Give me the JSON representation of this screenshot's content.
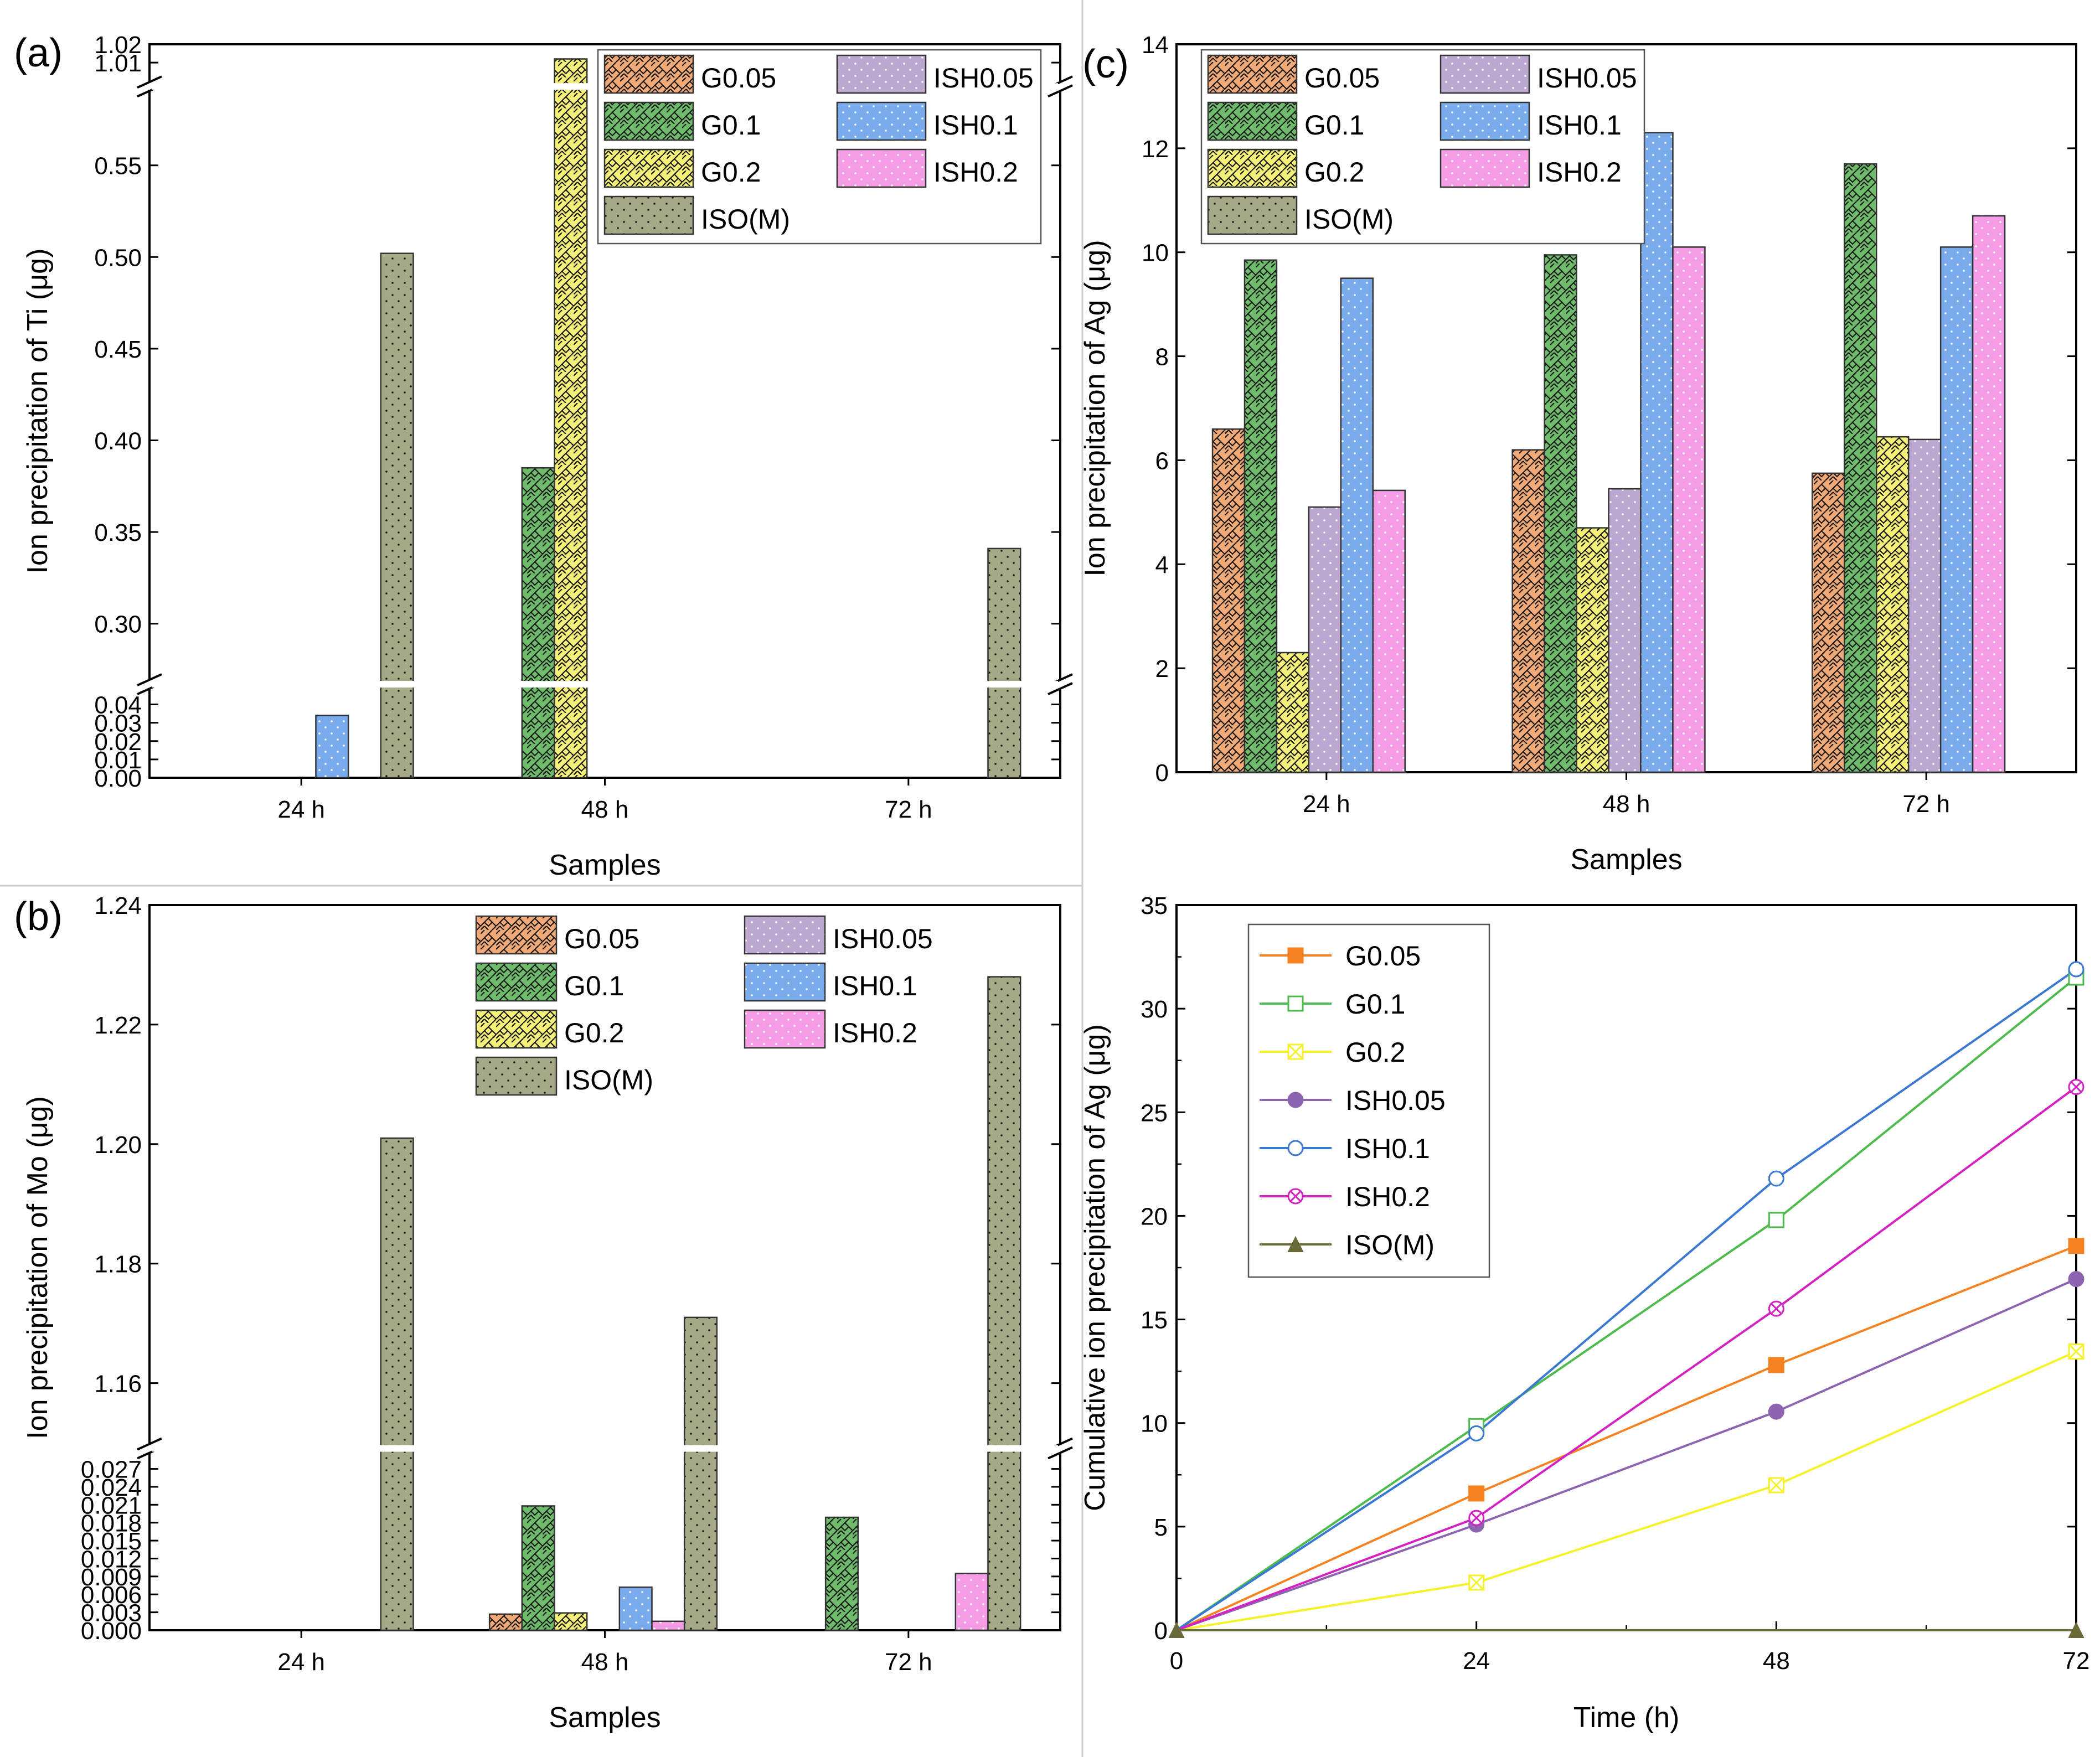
{
  "colors": {
    "G0.05": "#f2a978",
    "G0.1": "#6fbb6c",
    "G0.2": "#f4f07a",
    "ISH0.05": "#bba7cf",
    "ISH0.1": "#79aaeb",
    "ISH0.2": "#f59ce6",
    "ISO(M)": "#a7a986",
    "line_G0.05": "#f58220",
    "line_G0.1": "#4cbb4c",
    "line_G0.2": "#f5f22a",
    "line_ISH0.05": "#8c64b0",
    "line_ISH0.1": "#3a78d4",
    "line_ISH0.2": "#d421c2",
    "line_ISO(M)": "#6b6b3a"
  },
  "chart_data": [
    {
      "id": "a",
      "panel_label": "(a)",
      "type": "bar",
      "xlabel": "Samples",
      "ylabel": "Ion precipitation of Ti (μg)",
      "categories": [
        "24 h",
        "48 h",
        "72 h"
      ],
      "broken_axis": true,
      "segments": [
        [
          0,
          0.048
        ],
        [
          0.27,
          0.59
        ],
        [
          1.0,
          1.02
        ]
      ],
      "ticks": [
        [
          0.0,
          0.01,
          0.02,
          0.03,
          0.04
        ],
        [
          0.3,
          0.35,
          0.4,
          0.45,
          0.5,
          0.55
        ],
        [
          1.01,
          1.02
        ]
      ],
      "tick_labels": [
        [
          "0.00",
          "0.01",
          "0.02",
          "0.03",
          "0.04"
        ],
        [
          "0.30",
          "0.35",
          "0.40",
          "0.45",
          "0.50",
          "0.55"
        ],
        [
          "1.01",
          "1.02"
        ]
      ],
      "series": [
        {
          "name": "G0.05",
          "values": [
            0,
            0,
            0
          ]
        },
        {
          "name": "G0.1",
          "values": [
            0,
            0.385,
            0
          ]
        },
        {
          "name": "G0.2",
          "values": [
            0,
            1.012,
            0
          ]
        },
        {
          "name": "ISH0.05",
          "values": [
            0,
            0,
            0
          ]
        },
        {
          "name": "ISH0.1",
          "values": [
            0.034,
            0,
            0
          ]
        },
        {
          "name": "ISH0.2",
          "values": [
            0,
            0,
            0
          ]
        },
        {
          "name": "ISO(M)",
          "values": [
            0.502,
            0,
            0.341
          ]
        }
      ],
      "legend": [
        "G0.05",
        "ISH0.05",
        "G0.1",
        "ISH0.1",
        "G0.2",
        "ISH0.2",
        "ISO(M)"
      ]
    },
    {
      "id": "b",
      "panel_label": "(b)",
      "type": "bar",
      "xlabel": "Samples",
      "ylabel": "Ion precipitation of Mo (μg)",
      "categories": [
        "24 h",
        "48 h",
        "72 h"
      ],
      "broken_axis": true,
      "segments": [
        [
          0,
          0.0295
        ],
        [
          1.15,
          1.24
        ]
      ],
      "ticks": [
        [
          0.0,
          0.003,
          0.006,
          0.009,
          0.012,
          0.015,
          0.018,
          0.021,
          0.024,
          0.027
        ],
        [
          1.16,
          1.18,
          1.2,
          1.22,
          1.24
        ]
      ],
      "tick_labels": [
        [
          "0.000",
          "0.003",
          "0.006",
          "0.009",
          "0.012",
          "0.015",
          "0.018",
          "0.021",
          "0.024",
          "0.027"
        ],
        [
          "1.16",
          "1.18",
          "1.20",
          "1.22",
          "1.24"
        ]
      ],
      "series": [
        {
          "name": "G0.05",
          "values": [
            0,
            0.0027,
            0
          ]
        },
        {
          "name": "G0.1",
          "values": [
            0,
            0.0208,
            0.0189
          ]
        },
        {
          "name": "G0.2",
          "values": [
            0,
            0.0029,
            0
          ]
        },
        {
          "name": "ISH0.05",
          "values": [
            0,
            0,
            0
          ]
        },
        {
          "name": "ISH0.1",
          "values": [
            0,
            0.0072,
            0
          ]
        },
        {
          "name": "ISH0.2",
          "values": [
            0,
            0.0015,
            0.0095
          ]
        },
        {
          "name": "ISO(M)",
          "values": [
            1.201,
            1.171,
            1.228
          ]
        }
      ],
      "legend": [
        "G0.05",
        "ISH0.05",
        "G0.1",
        "ISH0.1",
        "G0.2",
        "ISH0.2",
        "ISO(M)"
      ]
    },
    {
      "id": "c",
      "panel_label": "(c)",
      "type": "bar",
      "xlabel": "Samples",
      "ylabel": "Ion precipitation of Ag (μg)",
      "categories": [
        "24 h",
        "48 h",
        "72 h"
      ],
      "ylim": [
        0,
        14
      ],
      "ticks": [
        0,
        2,
        4,
        6,
        8,
        10,
        12,
        14
      ],
      "series": [
        {
          "name": "G0.05",
          "values": [
            6.6,
            6.2,
            5.75
          ]
        },
        {
          "name": "G0.1",
          "values": [
            9.85,
            9.95,
            11.7
          ]
        },
        {
          "name": "G0.2",
          "values": [
            2.3,
            4.7,
            6.45
          ]
        },
        {
          "name": "ISH0.05",
          "values": [
            5.1,
            5.45,
            6.4
          ]
        },
        {
          "name": "ISH0.1",
          "values": [
            9.5,
            12.3,
            10.1
          ]
        },
        {
          "name": "ISH0.2",
          "values": [
            5.42,
            10.1,
            10.7
          ]
        },
        {
          "name": "ISO(M)",
          "values": [
            0,
            0,
            0
          ]
        }
      ],
      "legend": [
        "G0.05",
        "ISH0.05",
        "G0.1",
        "ISH0.1",
        "G0.2",
        "ISH0.2",
        "ISO(M)"
      ]
    },
    {
      "id": "d",
      "panel_label": "",
      "type": "line",
      "xlabel": "Time (h)",
      "ylabel": "Cumulative ion precipitation of Ag (μg)",
      "x": [
        0,
        24,
        48,
        72
      ],
      "xlim": [
        0,
        72
      ],
      "ylim": [
        0,
        35
      ],
      "xticks": [
        0,
        24,
        48,
        72
      ],
      "yticks": [
        0,
        5,
        10,
        15,
        20,
        25,
        30,
        35
      ],
      "series": [
        {
          "name": "G0.05",
          "marker": "square-filled",
          "values": [
            0,
            6.6,
            12.8,
            18.55
          ]
        },
        {
          "name": "G0.1",
          "marker": "square-open",
          "values": [
            0,
            9.85,
            19.8,
            31.5
          ]
        },
        {
          "name": "G0.2",
          "marker": "square-x",
          "values": [
            0,
            2.3,
            7.0,
            13.45
          ]
        },
        {
          "name": "ISH0.05",
          "marker": "circle-filled",
          "values": [
            0,
            5.1,
            10.55,
            16.95
          ]
        },
        {
          "name": "ISH0.1",
          "marker": "circle-open",
          "values": [
            0,
            9.5,
            21.8,
            31.9
          ]
        },
        {
          "name": "ISH0.2",
          "marker": "circle-x",
          "values": [
            0,
            5.42,
            15.52,
            26.22
          ]
        },
        {
          "name": "ISO(M)",
          "marker": "triangle-filled",
          "values": [
            0,
            0,
            0,
            0
          ]
        }
      ],
      "legend": [
        "G0.05",
        "G0.1",
        "G0.2",
        "ISH0.05",
        "ISH0.1",
        "ISH0.2",
        "ISO(M)"
      ]
    }
  ]
}
